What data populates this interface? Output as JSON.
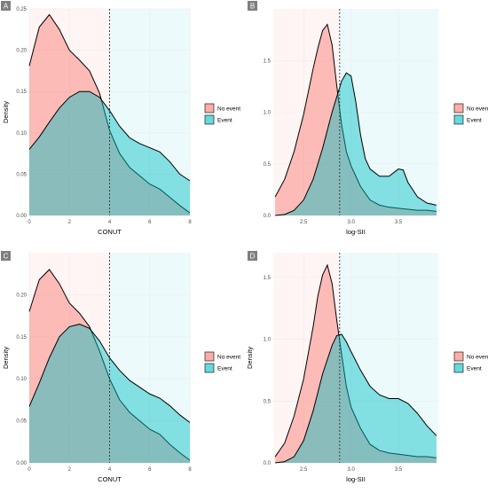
{
  "colors": {
    "no_event": "#f8766d",
    "event": "#00bfc4",
    "grid": "#ebebeb",
    "outline": "#000000",
    "tag_bg": "#7f7f7f"
  },
  "chart_data": [
    {
      "panel": "A",
      "type": "area",
      "xlabel": "CONUT",
      "ylabel": "Density",
      "xlim": [
        0,
        8
      ],
      "ylim": [
        0,
        0.25
      ],
      "xticks": [
        0,
        2,
        4,
        6,
        8
      ],
      "yticks": [
        0.0,
        0.05,
        0.1,
        0.15,
        0.2,
        0.25
      ],
      "ytick_labels": [
        "0.00",
        "0.05",
        "0.10",
        "0.15",
        "0.20",
        "0.25"
      ],
      "xtick_labels": [
        "0",
        "2",
        "4",
        "6",
        "8"
      ],
      "cutoff": 4,
      "legend": [
        "No event",
        "Event"
      ],
      "legend_position": "right",
      "grid": true,
      "series": [
        {
          "name": "No event",
          "x": [
            0,
            0.5,
            1,
            1.5,
            2,
            2.5,
            3,
            3.5,
            4,
            4.5,
            5,
            5.5,
            6,
            6.5,
            7,
            7.5,
            8
          ],
          "values": [
            0.181,
            0.228,
            0.243,
            0.225,
            0.2,
            0.188,
            0.175,
            0.148,
            0.103,
            0.075,
            0.058,
            0.048,
            0.038,
            0.032,
            0.022,
            0.012,
            0.003
          ]
        },
        {
          "name": "Event",
          "x": [
            0,
            0.5,
            1,
            1.5,
            2,
            2.5,
            3,
            3.5,
            4,
            4.5,
            5,
            5.5,
            6,
            6.5,
            7,
            7.5,
            8
          ],
          "values": [
            0.08,
            0.095,
            0.113,
            0.13,
            0.143,
            0.15,
            0.15,
            0.143,
            0.127,
            0.108,
            0.094,
            0.087,
            0.082,
            0.077,
            0.065,
            0.05,
            0.042
          ]
        }
      ]
    },
    {
      "panel": "B",
      "type": "area",
      "xlabel": "log-SII",
      "ylabel": "",
      "xlim": [
        2.18,
        3.92
      ],
      "ylim": [
        0,
        2.0
      ],
      "xticks": [
        2.5,
        3.0,
        3.5
      ],
      "xtick_labels": [
        "2.5",
        "3.0",
        "3.5"
      ],
      "yticks": [
        0,
        0.5,
        1.0,
        1.5
      ],
      "ytick_labels": [
        "0.0",
        "0.5",
        "1.0",
        "1.5"
      ],
      "cutoff": 2.88,
      "legend": [
        "No event",
        "Event"
      ],
      "legend_position": "right",
      "grid": true,
      "series": [
        {
          "name": "No event",
          "x": [
            2.2,
            2.3,
            2.4,
            2.5,
            2.6,
            2.65,
            2.7,
            2.75,
            2.8,
            2.85,
            2.9,
            2.95,
            3.0,
            3.05,
            3.1,
            3.2,
            3.3,
            3.4,
            3.5,
            3.6,
            3.7,
            3.8,
            3.9
          ],
          "values": [
            0.18,
            0.35,
            0.62,
            0.98,
            1.42,
            1.62,
            1.79,
            1.85,
            1.65,
            1.25,
            0.88,
            0.62,
            0.48,
            0.38,
            0.28,
            0.15,
            0.1,
            0.08,
            0.07,
            0.06,
            0.05,
            0.05,
            0.04
          ]
        },
        {
          "name": "Event",
          "x": [
            2.2,
            2.3,
            2.4,
            2.5,
            2.6,
            2.7,
            2.8,
            2.85,
            2.9,
            2.95,
            3.0,
            3.05,
            3.1,
            3.15,
            3.2,
            3.3,
            3.4,
            3.5,
            3.55,
            3.6,
            3.7,
            3.8,
            3.9
          ],
          "values": [
            0.0,
            0.01,
            0.05,
            0.15,
            0.35,
            0.65,
            1.0,
            1.15,
            1.3,
            1.38,
            1.35,
            1.1,
            0.78,
            0.55,
            0.45,
            0.38,
            0.38,
            0.45,
            0.44,
            0.32,
            0.18,
            0.12,
            0.1
          ]
        }
      ]
    },
    {
      "panel": "C",
      "type": "area",
      "xlabel": "CONUT",
      "ylabel": "Density",
      "xlim": [
        0,
        8
      ],
      "ylim": [
        0,
        0.25
      ],
      "xticks": [
        0,
        2,
        4,
        6,
        8
      ],
      "xtick_labels": [
        "0",
        "2",
        "4",
        "6",
        "8"
      ],
      "yticks": [
        0.0,
        0.05,
        0.1,
        0.15,
        0.2
      ],
      "ytick_labels": [
        "0.00",
        "0.05",
        "0.10",
        "0.15",
        "0.20"
      ],
      "cutoff": 4,
      "legend": [
        "No event",
        "Event"
      ],
      "legend_position": "right",
      "grid": true,
      "series": [
        {
          "name": "No event",
          "x": [
            0,
            0.5,
            1,
            1.5,
            2,
            2.5,
            3,
            3.5,
            4,
            4.5,
            5,
            5.5,
            6,
            6.5,
            7,
            7.5,
            8
          ],
          "values": [
            0.18,
            0.218,
            0.23,
            0.213,
            0.19,
            0.178,
            0.162,
            0.133,
            0.1,
            0.075,
            0.06,
            0.05,
            0.04,
            0.034,
            0.022,
            0.012,
            0.003
          ]
        },
        {
          "name": "Event",
          "x": [
            0,
            0.5,
            1,
            1.5,
            2,
            2.5,
            3,
            3.5,
            4,
            4.5,
            5,
            5.5,
            6,
            6.5,
            7,
            7.5,
            8
          ],
          "values": [
            0.067,
            0.095,
            0.125,
            0.15,
            0.162,
            0.165,
            0.16,
            0.145,
            0.125,
            0.11,
            0.098,
            0.09,
            0.082,
            0.077,
            0.068,
            0.057,
            0.048
          ]
        }
      ]
    },
    {
      "panel": "D",
      "type": "area",
      "xlabel": "log-SII",
      "ylabel": "Density",
      "xlim": [
        2.18,
        3.92
      ],
      "ylim": [
        0,
        1.7
      ],
      "xticks": [
        2.5,
        3.0,
        3.5
      ],
      "xtick_labels": [
        "2.5",
        "3.0",
        "3.5"
      ],
      "yticks": [
        0,
        0.5,
        1.0,
        1.5
      ],
      "ytick_labels": [
        "0.0",
        "0.5",
        "1.0",
        "1.5"
      ],
      "cutoff": 2.88,
      "legend": [
        "No event",
        "Event"
      ],
      "legend_position": "right",
      "grid": true,
      "series": [
        {
          "name": "No event",
          "x": [
            2.2,
            2.3,
            2.4,
            2.5,
            2.6,
            2.65,
            2.7,
            2.75,
            2.8,
            2.85,
            2.9,
            2.95,
            3.0,
            3.1,
            3.2,
            3.3,
            3.4,
            3.5,
            3.6,
            3.7,
            3.8,
            3.9
          ],
          "values": [
            0.05,
            0.16,
            0.38,
            0.68,
            1.1,
            1.35,
            1.52,
            1.6,
            1.45,
            1.15,
            0.88,
            0.62,
            0.45,
            0.28,
            0.15,
            0.1,
            0.08,
            0.07,
            0.06,
            0.05,
            0.05,
            0.04
          ]
        },
        {
          "name": "Event",
          "x": [
            2.2,
            2.3,
            2.4,
            2.5,
            2.6,
            2.7,
            2.8,
            2.85,
            2.9,
            2.95,
            3.0,
            3.1,
            3.2,
            3.3,
            3.4,
            3.5,
            3.6,
            3.7,
            3.8,
            3.9
          ],
          "values": [
            0.0,
            0.01,
            0.05,
            0.18,
            0.42,
            0.72,
            0.95,
            1.03,
            1.04,
            0.98,
            0.9,
            0.75,
            0.62,
            0.55,
            0.52,
            0.52,
            0.48,
            0.4,
            0.3,
            0.22
          ]
        }
      ]
    }
  ]
}
